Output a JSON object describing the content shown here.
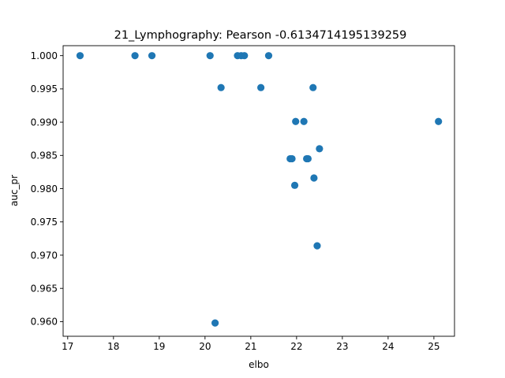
{
  "chart_data": {
    "type": "scatter",
    "title": "21_Lymphography: Pearson -0.6134714195139259",
    "xlabel": "elbo",
    "ylabel": "auc_pr",
    "xlim": [
      16.9,
      25.45
    ],
    "ylim": [
      0.9578,
      1.0015
    ],
    "xticks": [
      17,
      18,
      19,
      20,
      21,
      22,
      23,
      24,
      25
    ],
    "yticks": [
      0.96,
      0.965,
      0.97,
      0.975,
      0.98,
      0.985,
      0.99,
      0.995,
      1.0
    ],
    "ytick_labels": [
      "0.960",
      "0.965",
      "0.970",
      "0.975",
      "0.980",
      "0.985",
      "0.990",
      "0.995",
      "1.000"
    ],
    "grid": false,
    "marker_color": "#1f77b4",
    "points": [
      {
        "x": 17.27,
        "y": 1.0
      },
      {
        "x": 18.47,
        "y": 1.0
      },
      {
        "x": 18.84,
        "y": 1.0
      },
      {
        "x": 20.11,
        "y": 1.0
      },
      {
        "x": 20.71,
        "y": 1.0
      },
      {
        "x": 20.79,
        "y": 1.0
      },
      {
        "x": 20.86,
        "y": 1.0
      },
      {
        "x": 21.39,
        "y": 1.0
      },
      {
        "x": 20.35,
        "y": 0.9952
      },
      {
        "x": 21.22,
        "y": 0.9952
      },
      {
        "x": 22.36,
        "y": 0.9952
      },
      {
        "x": 21.98,
        "y": 0.9901
      },
      {
        "x": 22.16,
        "y": 0.9901
      },
      {
        "x": 25.1,
        "y": 0.9901
      },
      {
        "x": 22.5,
        "y": 0.986
      },
      {
        "x": 21.86,
        "y": 0.9845
      },
      {
        "x": 21.9,
        "y": 0.9845
      },
      {
        "x": 22.22,
        "y": 0.9845
      },
      {
        "x": 22.25,
        "y": 0.9845
      },
      {
        "x": 22.38,
        "y": 0.9816
      },
      {
        "x": 21.96,
        "y": 0.9805
      },
      {
        "x": 22.45,
        "y": 0.9714
      },
      {
        "x": 20.22,
        "y": 0.9598
      }
    ]
  }
}
